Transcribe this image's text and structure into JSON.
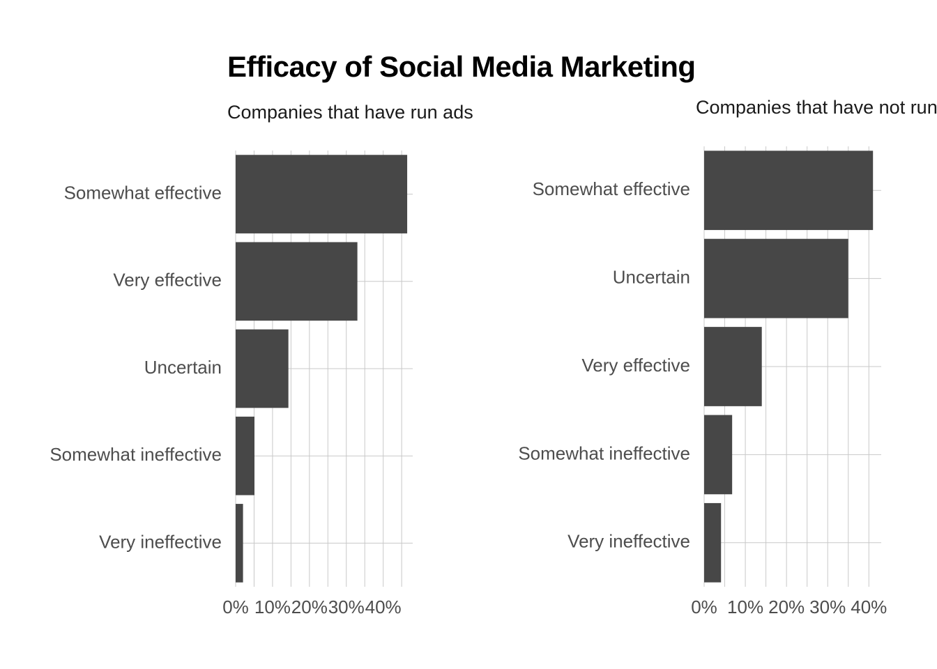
{
  "title": "Efficacy of Social Media Marketing",
  "colors": {
    "bar": "#474747",
    "grid": "#c8c8c8",
    "axis_text": "#4d4d4d",
    "subtitle": "#1a1a1a"
  },
  "chart_data": [
    {
      "type": "bar",
      "orientation": "horizontal",
      "subtitle": "Companies that have run ads",
      "categories": [
        "Somewhat effective",
        "Very effective",
        "Uncertain",
        "Somewhat ineffective",
        "Very ineffective"
      ],
      "values": [
        46.5,
        33,
        14.3,
        5.1,
        2
      ],
      "xlabel": "",
      "ylabel": "",
      "x_ticks": [
        0,
        10,
        20,
        30,
        40
      ],
      "x_tick_labels": [
        "0%",
        "10%",
        "20%",
        "30%",
        "40%"
      ],
      "xlim": [
        0,
        48
      ],
      "grid": true
    },
    {
      "type": "bar",
      "orientation": "horizontal",
      "subtitle": "Companies that have not run ads",
      "categories": [
        "Somewhat effective",
        "Uncertain",
        "Very effective",
        "Somewhat ineffective",
        "Very ineffective"
      ],
      "values": [
        41,
        35,
        14,
        6.8,
        4.1
      ],
      "xlabel": "",
      "ylabel": "",
      "x_ticks": [
        0,
        10,
        20,
        30,
        40
      ],
      "x_tick_labels": [
        "0%",
        "10%",
        "20%",
        "30%",
        "40%"
      ],
      "xlim": [
        0,
        43
      ],
      "grid": true
    }
  ]
}
